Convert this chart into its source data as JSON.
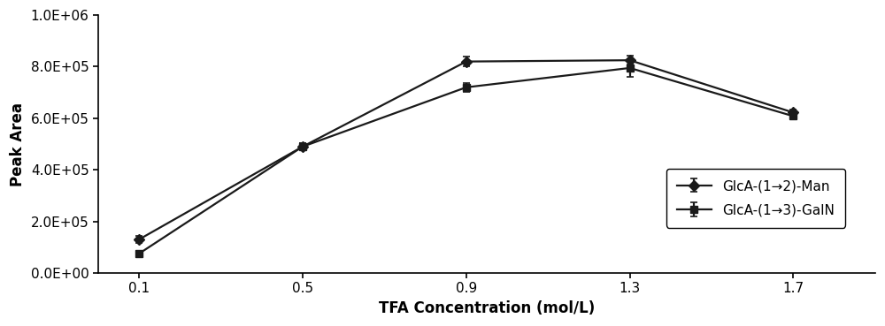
{
  "x": [
    0.1,
    0.5,
    0.9,
    1.3,
    1.7
  ],
  "series1_y": [
    130000,
    490000,
    820000,
    825000,
    622000
  ],
  "series1_err": [
    15000,
    12000,
    18000,
    18000,
    12000
  ],
  "series1_label": "GlcA-(1→2)-Man",
  "series2_y": [
    75000,
    490000,
    720000,
    795000,
    608000
  ],
  "series2_err": [
    12000,
    12000,
    18000,
    35000,
    12000
  ],
  "series2_label": "GlcA-(1→3)-GalN",
  "xlabel": "TFA Concentration (mol/L)",
  "ylabel": "Peak Area",
  "ylim": [
    0,
    1000000
  ],
  "xlim": [
    0.0,
    1.9
  ],
  "yticks": [
    0,
    200000,
    400000,
    600000,
    800000,
    1000000
  ],
  "ytick_labels": [
    "0.0E+00",
    "2.0E+05",
    "4.0E+05",
    "6.0E+05",
    "8.0E+05",
    "1.0E+06"
  ],
  "xticks": [
    0.1,
    0.5,
    0.9,
    1.3,
    1.7
  ],
  "line_color": "#1a1a1a",
  "background_color": "#ffffff",
  "axis_fontsize": 12,
  "tick_fontsize": 11,
  "legend_fontsize": 11
}
